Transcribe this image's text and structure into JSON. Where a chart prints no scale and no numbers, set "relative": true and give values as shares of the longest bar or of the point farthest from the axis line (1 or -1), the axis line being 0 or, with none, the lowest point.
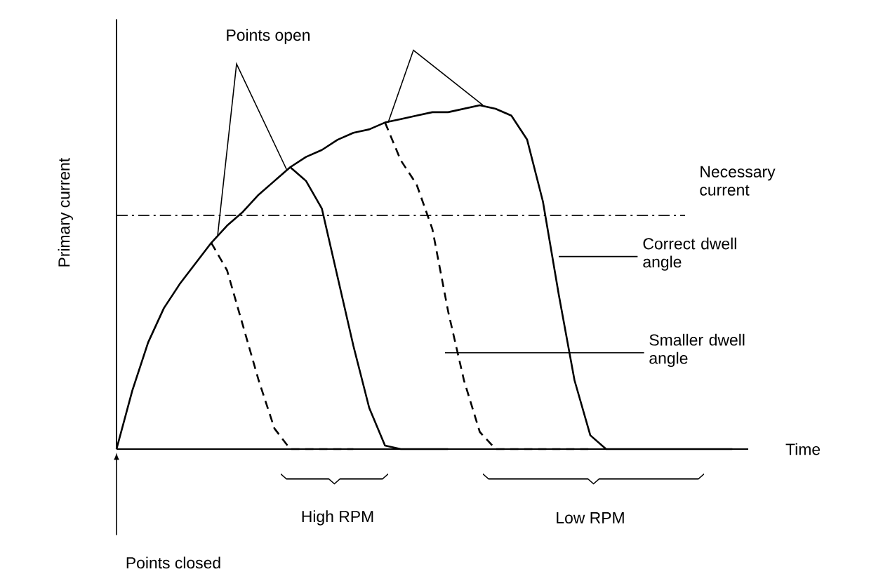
{
  "chart_data": {
    "type": "line",
    "relative": true,
    "xlabel": "Time",
    "ylabel": "Primary current",
    "categories": [
      null,
      null,
      null,
      null,
      null,
      null,
      null,
      null,
      null,
      null,
      null,
      null,
      null,
      null,
      null,
      null,
      null,
      null,
      null,
      null,
      null,
      null,
      null,
      null,
      null,
      null,
      null,
      null,
      null,
      null,
      null,
      null,
      null,
      null,
      null,
      null,
      null,
      null,
      null,
      null,
      null
    ],
    "series": [
      {
        "color": "#000000",
        "line_style": "solid",
        "values": [
          0,
          0.17,
          0.31,
          0.41,
          0.48,
          0.54,
          0.6,
          0.65,
          0.69,
          0.74,
          0.78,
          0.82,
          0.85,
          0.87,
          0.9,
          0.92,
          0.93,
          0.95,
          0.96,
          0.97,
          0.98,
          0.98,
          0.99,
          1.0,
          0.99,
          0.97,
          0.9,
          0.72,
          0.45,
          0.2,
          0.04,
          0,
          0,
          0,
          0,
          0,
          0,
          0,
          0,
          0,
          null
        ]
      },
      {
        "color": "#000000",
        "line_style": "solid",
        "values": [
          null,
          null,
          null,
          null,
          null,
          null,
          null,
          null,
          null,
          null,
          null,
          0.82,
          0.78,
          0.7,
          0.5,
          0.3,
          0.12,
          0.01,
          0,
          0,
          0,
          0,
          null,
          null,
          null,
          null,
          null,
          null,
          null,
          null,
          null,
          null,
          null,
          null,
          null,
          null,
          null,
          null,
          null,
          null,
          null
        ]
      },
      {
        "color": "#000000",
        "line_style": "dashed",
        "values": [
          null,
          null,
          null,
          null,
          null,
          null,
          0.6,
          0.52,
          0.36,
          0.2,
          0.06,
          0,
          0,
          0,
          0,
          0,
          null,
          null,
          null,
          null,
          null,
          null,
          null,
          null,
          null,
          null,
          null,
          null,
          null,
          null,
          null,
          null,
          null,
          null,
          null,
          null,
          null,
          null,
          null,
          null,
          null
        ]
      },
      {
        "color": "#000000",
        "line_style": "dashed",
        "values": [
          null,
          null,
          null,
          null,
          null,
          null,
          null,
          null,
          null,
          null,
          null,
          null,
          null,
          null,
          null,
          null,
          null,
          0.95,
          0.84,
          0.77,
          0.64,
          0.4,
          0.2,
          0.05,
          0,
          0,
          0,
          0,
          0,
          0,
          0,
          null,
          null,
          null,
          null,
          null,
          null,
          null,
          null,
          null,
          null
        ]
      }
    ],
    "ref_lines": [
      {
        "axis": "y",
        "value": 0.68,
        "label": "Necessary current",
        "line_style": "dashdot"
      }
    ],
    "annotations": [
      "Points open",
      "Correct dwell angle",
      "Smaller dwell angle",
      "High RPM",
      "Low RPM",
      "Points closed"
    ]
  }
}
